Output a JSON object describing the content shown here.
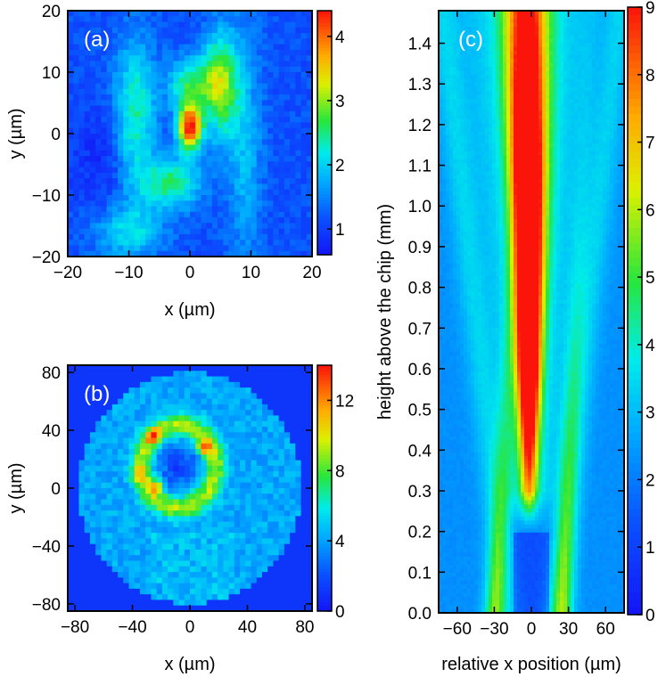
{
  "chart_data": [
    {
      "id": "a",
      "type": "heatmap",
      "panel_label": "(a)",
      "xlabel": "x (µm)",
      "ylabel": "y (µm)",
      "xlim": [
        -20,
        20
      ],
      "ylim": [
        -20,
        20
      ],
      "x_ticks": [
        -20,
        -10,
        0,
        10,
        20
      ],
      "y_ticks": [
        -20,
        -10,
        0,
        10,
        20
      ],
      "x_tick_labels": [
        "−20",
        "−10",
        "0",
        "10",
        "20"
      ],
      "y_tick_labels": [
        "−20",
        "−10",
        "0",
        "10",
        "20"
      ],
      "colorbar": {
        "range": [
          0.6,
          4.4
        ],
        "ticks": [
          1,
          2,
          3,
          4
        ],
        "tick_labels": [
          "1",
          "2",
          "3",
          "4"
        ]
      },
      "features": [
        {
          "shape": "spot",
          "x": 0,
          "y": 1,
          "value": 4.4
        },
        {
          "shape": "spot",
          "x": 0,
          "y": 8,
          "value": 2.6
        },
        {
          "shape": "band",
          "x": -9,
          "y": 2,
          "value": 1.7
        },
        {
          "shape": "band",
          "x": 5,
          "y": 8,
          "value": 2.3
        },
        {
          "shape": "spot",
          "x": -3,
          "y": -8,
          "value": 2.3
        },
        {
          "shape": "spot",
          "x": -10,
          "y": -16,
          "value": 1.8
        },
        {
          "shape": "band",
          "x": 9,
          "y": -2,
          "value": 1.6
        }
      ]
    },
    {
      "id": "b",
      "type": "heatmap",
      "panel_label": "(b)",
      "xlabel": "x (µm)",
      "ylabel": "y (µm)",
      "xlim": [
        -85,
        85
      ],
      "ylim": [
        -85,
        85
      ],
      "x_ticks": [
        -80,
        -40,
        0,
        40,
        80
      ],
      "y_ticks": [
        -80,
        -40,
        0,
        40,
        80
      ],
      "x_tick_labels": [
        "−80",
        "−40",
        "0",
        "40",
        "80"
      ],
      "y_tick_labels": [
        "−80",
        "−40",
        "0",
        "40",
        "80"
      ],
      "colorbar": {
        "range": [
          0,
          14
        ],
        "ticks": [
          0,
          4,
          8,
          12
        ],
        "tick_labels": [
          "0",
          "4",
          "8",
          "12"
        ]
      },
      "features": [
        {
          "shape": "ring",
          "x": -8,
          "y": 15,
          "radius": 22,
          "value": 8
        },
        {
          "shape": "spot",
          "x": -26,
          "y": 36,
          "value": 11
        },
        {
          "shape": "spot",
          "x": 10,
          "y": 28,
          "value": 14
        },
        {
          "shape": "spot",
          "x": -24,
          "y": 1,
          "value": 11
        },
        {
          "shape": "spot",
          "x": -36,
          "y": 10,
          "value": 10
        },
        {
          "shape": "background",
          "value": 4
        }
      ]
    },
    {
      "id": "c",
      "type": "heatmap",
      "panel_label": "(c)",
      "xlabel": "relative x position (µm)",
      "ylabel": "height above the chip (mm)",
      "xlim": [
        -75,
        75
      ],
      "ylim": [
        0,
        1.48
      ],
      "x_ticks": [
        -60,
        -30,
        0,
        30,
        60
      ],
      "y_ticks": [
        0.0,
        0.1,
        0.2,
        0.3,
        0.4,
        0.5,
        0.6,
        0.7,
        0.8,
        0.9,
        1.0,
        1.1,
        1.2,
        1.3,
        1.4
      ],
      "x_tick_labels": [
        "−60",
        "−30",
        "0",
        "30",
        "60"
      ],
      "y_tick_labels": [
        "0.0",
        "0.1",
        "0.2",
        "0.3",
        "0.4",
        "0.5",
        "0.6",
        "0.7",
        "0.8",
        "0.9",
        "1.0",
        "1.1",
        "1.2",
        "1.3",
        "1.4"
      ],
      "colorbar": {
        "range": [
          0,
          9
        ],
        "ticks": [
          0,
          1,
          2,
          3,
          4,
          5,
          6,
          7,
          8,
          9
        ],
        "tick_labels": [
          "0",
          "1",
          "2",
          "3",
          "4",
          "5",
          "6",
          "7",
          "8",
          "9"
        ]
      },
      "features": [
        {
          "shape": "beam",
          "height_mm": 0.2,
          "x": 0,
          "value": 5.5
        },
        {
          "shape": "beam",
          "height_mm": 0.6,
          "x": 0,
          "value": 8.5
        },
        {
          "shape": "beam",
          "height_mm": 1.0,
          "x": -2,
          "value": 8.5
        },
        {
          "shape": "beam",
          "height_mm": 1.4,
          "x": -7,
          "value": 6
        },
        {
          "shape": "side_lobe",
          "height_mm": 0.0,
          "x": -30,
          "value": 5
        },
        {
          "shape": "side_lobe",
          "height_mm": 0.0,
          "x": 25,
          "value": 5
        }
      ]
    }
  ]
}
